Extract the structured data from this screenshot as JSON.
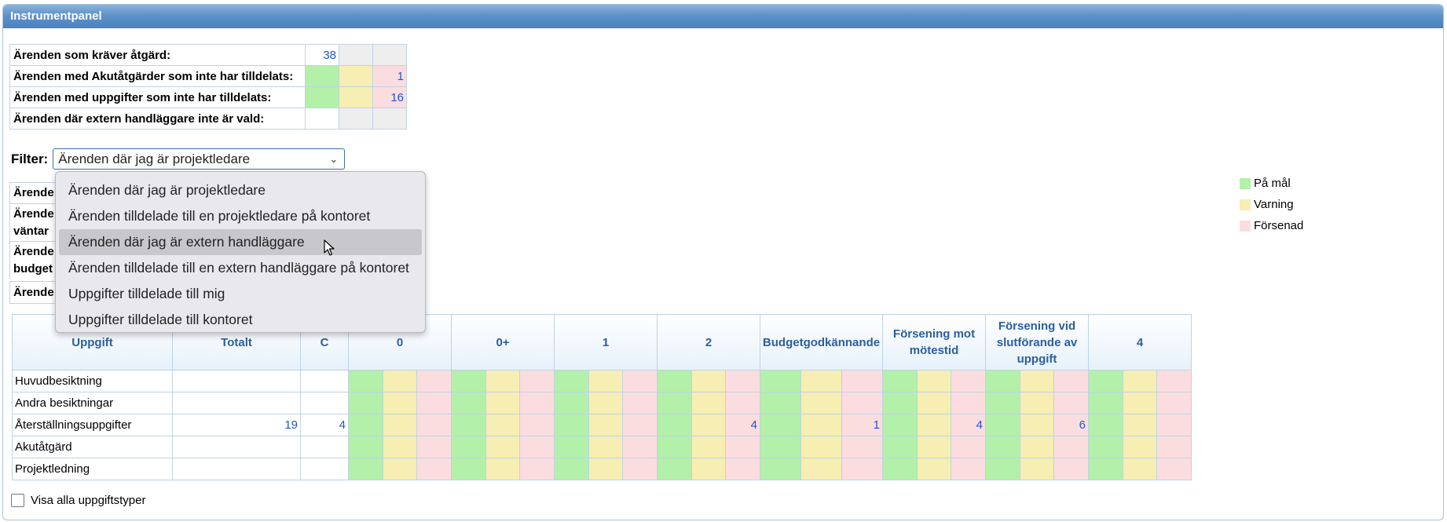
{
  "panel": {
    "title": "Instrumentpanel"
  },
  "summary": [
    {
      "label": "Ärenden som kräver åtgärd:",
      "value": "38",
      "c2": "",
      "c3": ""
    },
    {
      "label": "Ärenden med Akutåtgärder som inte har tilldelats:",
      "value": "",
      "c2": "",
      "c3": "1"
    },
    {
      "label": "Ärenden med uppgifter som inte har tilldelats:",
      "value": "",
      "c2": "",
      "c3": "16"
    },
    {
      "label": "Ärenden där extern handläggare inte är vald:",
      "value": "",
      "c2": "",
      "c3": ""
    }
  ],
  "filter": {
    "label": "Filter:",
    "selected": "Ärenden där jag är projektledare",
    "options": [
      "Ärenden där jag är projektledare",
      "Ärenden tilldelade till en projektledare på kontoret",
      "Ärenden där jag är extern handläggare",
      "Ärenden tilldelade till en extern handläggare på kontoret",
      "Uppgifter tilldelade till mig",
      "Uppgifter tilldelade till kontoret"
    ],
    "highlighted_index": 2
  },
  "obscured_rows": {
    "row1": "Ärende",
    "row2a": "Ärende",
    "row2b": "väntar",
    "row3a": "Ärende",
    "row3b": "budget",
    "row4": "Ärende"
  },
  "grid": {
    "headers": [
      "Uppgift",
      "Totalt",
      "C",
      "0",
      "0+",
      "1",
      "2",
      "Budgetgodkännande",
      "Försening mot mötestid",
      "Försening vid slutförande av uppgift",
      "4"
    ],
    "rows": [
      {
        "name": "Huvudbesiktning",
        "total": "",
        "c": "",
        "groups": [
          [
            "",
            "",
            ""
          ],
          [
            "",
            "",
            ""
          ],
          [
            "",
            "",
            ""
          ],
          [
            "",
            "",
            ""
          ],
          [
            "",
            "",
            ""
          ],
          [
            "",
            "",
            ""
          ],
          [
            "",
            "",
            ""
          ],
          [
            "",
            "",
            ""
          ]
        ]
      },
      {
        "name": "Andra besiktningar",
        "total": "",
        "c": "",
        "groups": [
          [
            "",
            "",
            ""
          ],
          [
            "",
            "",
            ""
          ],
          [
            "",
            "",
            ""
          ],
          [
            "",
            "",
            ""
          ],
          [
            "",
            "",
            ""
          ],
          [
            "",
            "",
            ""
          ],
          [
            "",
            "",
            ""
          ],
          [
            "",
            "",
            ""
          ]
        ]
      },
      {
        "name": "Återställningsuppgifter",
        "total": "19",
        "c": "4",
        "groups": [
          [
            "",
            "",
            ""
          ],
          [
            "",
            "",
            ""
          ],
          [
            "",
            "",
            ""
          ],
          [
            "",
            "",
            "4"
          ],
          [
            "",
            "",
            "1"
          ],
          [
            "",
            "",
            "4"
          ],
          [
            "",
            "",
            "6"
          ],
          [
            "",
            "",
            ""
          ]
        ]
      },
      {
        "name": "Akutåtgärd",
        "total": "",
        "c": "",
        "groups": [
          [
            "",
            "",
            ""
          ],
          [
            "",
            "",
            ""
          ],
          [
            "",
            "",
            ""
          ],
          [
            "",
            "",
            ""
          ],
          [
            "",
            "",
            ""
          ],
          [
            "",
            "",
            ""
          ],
          [
            "",
            "",
            ""
          ],
          [
            "",
            "",
            ""
          ]
        ]
      },
      {
        "name": "Projektledning",
        "total": "",
        "c": "",
        "groups": [
          [
            "",
            "",
            ""
          ],
          [
            "",
            "",
            ""
          ],
          [
            "",
            "",
            ""
          ],
          [
            "",
            "",
            ""
          ],
          [
            "",
            "",
            ""
          ],
          [
            "",
            "",
            ""
          ],
          [
            "",
            "",
            ""
          ],
          [
            "",
            "",
            ""
          ]
        ]
      }
    ]
  },
  "legend": [
    {
      "label": "På mål",
      "color": "#b3f0a9"
    },
    {
      "label": "Varning",
      "color": "#f6eeb2"
    },
    {
      "label": "Försenad",
      "color": "#fbdde0"
    }
  ],
  "show_all": {
    "label": "Visa alla uppgiftstyper",
    "checked": false
  }
}
